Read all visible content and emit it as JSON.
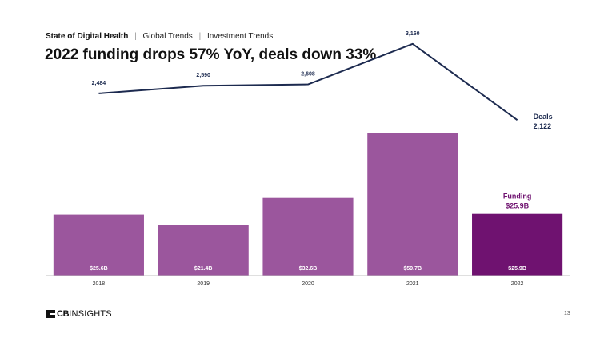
{
  "header": {
    "report": "State of Digital Health",
    "section": "Global Trends",
    "subsection": "Investment Trends",
    "separator": "|",
    "title": "2022 funding drops 57% YoY, deals down 33%"
  },
  "chart_data": {
    "type": "bar",
    "title": "2022 funding drops 57% YoY, deals down 33%",
    "categories": [
      "2018",
      "2019",
      "2020",
      "2021",
      "2022"
    ],
    "series": [
      {
        "name": "Funding",
        "type": "bar",
        "unit": "$B",
        "values": [
          25.6,
          21.4,
          32.6,
          59.7,
          25.9
        ],
        "labels": [
          "$25.6B",
          "$21.4B",
          "$32.6B",
          "$59.7B",
          "$25.9B"
        ],
        "color": "#9b569d",
        "highlight_color": "#6f1270"
      },
      {
        "name": "Deals",
        "type": "line",
        "values": [
          2484,
          2590,
          2608,
          3160,
          2122
        ],
        "labels": [
          "2,484",
          "2,590",
          "2,608",
          "3,160",
          "2,122"
        ],
        "color": "#1c2a4f"
      }
    ],
    "legend": {
      "deals_label": "Deals",
      "deals_value": "2,122",
      "funding_label": "Funding",
      "funding_value": "$25.9B",
      "deals_color": "#1c2a4f",
      "funding_color": "#6f1270"
    },
    "ylim_funding": [
      0,
      66
    ],
    "ylim_deals": [
      0,
      3300
    ],
    "xlabel": "",
    "ylabel": ""
  },
  "footer": {
    "brand_bold": "CB",
    "brand_rest": "INSIGHTS",
    "page_number": "13"
  }
}
